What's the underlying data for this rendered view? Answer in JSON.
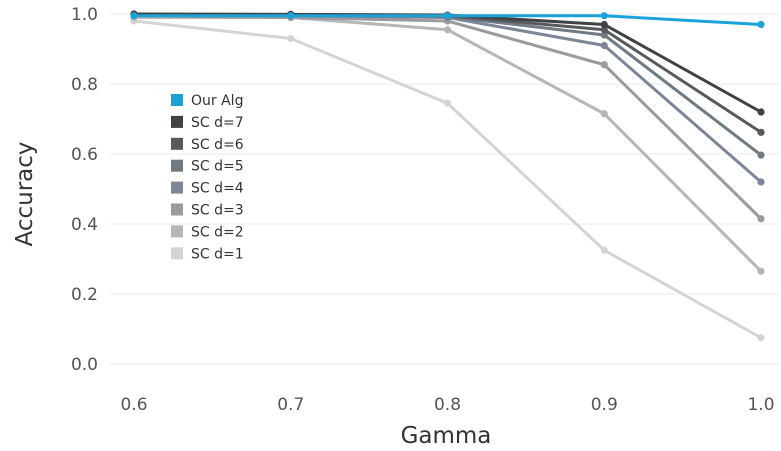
{
  "chart_data": {
    "type": "line",
    "xlabel": "Gamma",
    "ylabel": "Accuracy",
    "x": [
      0.6,
      0.7,
      0.8,
      0.9,
      1.0
    ],
    "x_tick_labels": [
      "0.6",
      "0.7",
      "0.8",
      "0.9",
      "1.0"
    ],
    "y_tick_labels": [
      "0.0",
      "0.2",
      "0.4",
      "0.6",
      "0.8",
      "1.0"
    ],
    "ylim": [
      0.0,
      1.0
    ],
    "grid": "horizontal",
    "legend_placement": "left-center",
    "series": [
      {
        "name": "SC d=1",
        "color": "#d4d4d4",
        "values": [
          0.98,
          0.93,
          0.745,
          0.325,
          0.075
        ]
      },
      {
        "name": "SC d=2",
        "color": "#b6b6b6",
        "values": [
          0.99,
          0.99,
          0.955,
          0.715,
          0.265
        ]
      },
      {
        "name": "SC d=3",
        "color": "#9a9a9f",
        "values": [
          0.995,
          0.99,
          0.98,
          0.855,
          0.415
        ]
      },
      {
        "name": "SC d=4",
        "color": "#7d8699",
        "values": [
          0.998,
          0.995,
          0.99,
          0.91,
          0.52
        ]
      },
      {
        "name": "SC d=5",
        "color": "#6e7a84",
        "values": [
          0.998,
          0.997,
          0.993,
          0.94,
          0.597
        ]
      },
      {
        "name": "SC d=6",
        "color": "#58595b",
        "values": [
          0.999,
          0.998,
          0.995,
          0.955,
          0.662
        ]
      },
      {
        "name": "SC d=7",
        "color": "#3f4145",
        "values": [
          1.0,
          0.999,
          0.997,
          0.97,
          0.72
        ]
      },
      {
        "name": "Our Alg",
        "color": "#1ba3d8",
        "values": [
          0.995,
          0.995,
          0.995,
          0.995,
          0.97
        ]
      }
    ],
    "legend_order": [
      "Our Alg",
      "SC d=7",
      "SC d=6",
      "SC d=5",
      "SC d=4",
      "SC d=3",
      "SC d=2",
      "SC d=1"
    ]
  }
}
